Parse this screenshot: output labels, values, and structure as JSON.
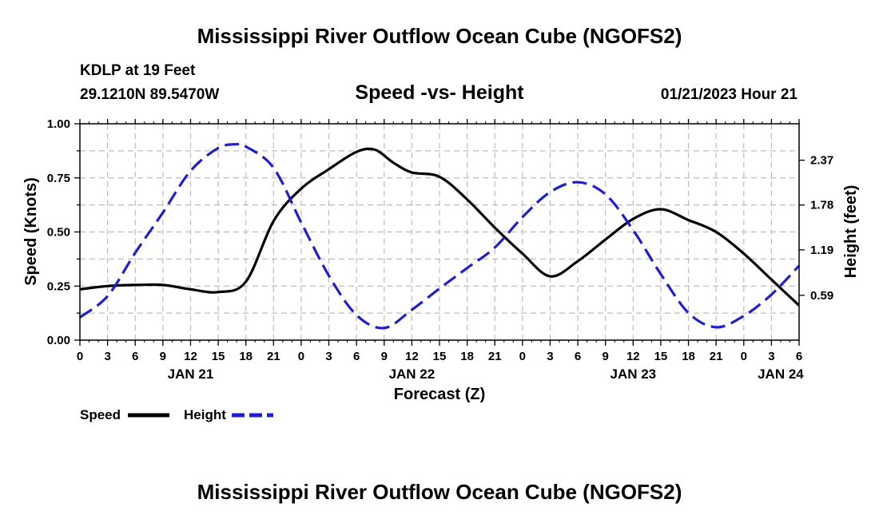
{
  "chart_data": {
    "type": "line",
    "title": "Mississippi River Outflow Ocean Cube (NGOFS2)",
    "subtitle": "Speed -vs- Height",
    "station": "KDLP at 19 Feet",
    "location": "29.1210N  89.5470W",
    "run": "01/21/2023 Hour 21",
    "xlabel": "Forecast (Z)",
    "ylabel": "Speed (Knots)",
    "y2label": "Height (feet)",
    "ylim": [
      0,
      1
    ],
    "y2lim": [
      0,
      2.85
    ],
    "yticks": [
      "0.00",
      "0.25",
      "0.50",
      "0.75",
      "1.00"
    ],
    "y2ticks": [
      "0.59",
      "1.19",
      "1.78",
      "2.37"
    ],
    "y2tick_values": [
      0.59,
      1.19,
      1.78,
      2.37
    ],
    "xlim": [
      0,
      78
    ],
    "xticks": [
      "0",
      "3",
      "6",
      "9",
      "12",
      "15",
      "18",
      "21",
      "0",
      "3",
      "6",
      "9",
      "12",
      "15",
      "18",
      "21",
      "0",
      "3",
      "6",
      "9",
      "12",
      "15",
      "18",
      "21",
      "0",
      "3",
      "6"
    ],
    "date_labels": [
      {
        "label": "JAN 21",
        "hour": 12
      },
      {
        "label": "JAN 22",
        "hour": 36
      },
      {
        "label": "JAN 23",
        "hour": 60
      },
      {
        "label": "JAN 24",
        "hour": 76
      }
    ],
    "grid": true,
    "series": [
      {
        "name": "Speed",
        "axis": "left",
        "color": "#000000",
        "dash": "solid",
        "x": [
          0,
          3,
          6,
          9,
          12,
          15,
          18,
          21,
          24,
          27,
          30,
          32,
          34,
          36,
          39,
          42,
          45,
          48,
          51,
          54,
          57,
          60,
          63,
          66,
          69,
          72,
          75,
          78
        ],
        "values": [
          0.235,
          0.25,
          0.255,
          0.255,
          0.235,
          0.222,
          0.27,
          0.55,
          0.7,
          0.79,
          0.87,
          0.88,
          0.82,
          0.775,
          0.755,
          0.65,
          0.52,
          0.4,
          0.295,
          0.365,
          0.465,
          0.56,
          0.605,
          0.555,
          0.5,
          0.4,
          0.28,
          0.16
        ]
      },
      {
        "name": "Height",
        "axis": "right",
        "color": "#1f1fd0",
        "dash": "dashed",
        "x": [
          0,
          3,
          6,
          9,
          12,
          15,
          17,
          18,
          21,
          24,
          27,
          30,
          33,
          36,
          39,
          42,
          45,
          48,
          51,
          54,
          57,
          60,
          63,
          66,
          69,
          72,
          75,
          78
        ],
        "values": [
          0.3,
          0.58,
          1.15,
          1.68,
          2.23,
          2.53,
          2.58,
          2.55,
          2.27,
          1.55,
          0.85,
          0.33,
          0.16,
          0.4,
          0.68,
          0.95,
          1.22,
          1.62,
          1.95,
          2.08,
          1.92,
          1.45,
          0.87,
          0.36,
          0.17,
          0.32,
          0.6,
          0.98
        ]
      }
    ],
    "legend": [
      {
        "label": "Speed",
        "color": "#000000",
        "dash": "solid"
      },
      {
        "label": "Height",
        "color": "#1f1fd0",
        "dash": "dashed"
      }
    ],
    "footer_title": "Mississippi River Outflow Ocean Cube (NGOFS2)"
  }
}
